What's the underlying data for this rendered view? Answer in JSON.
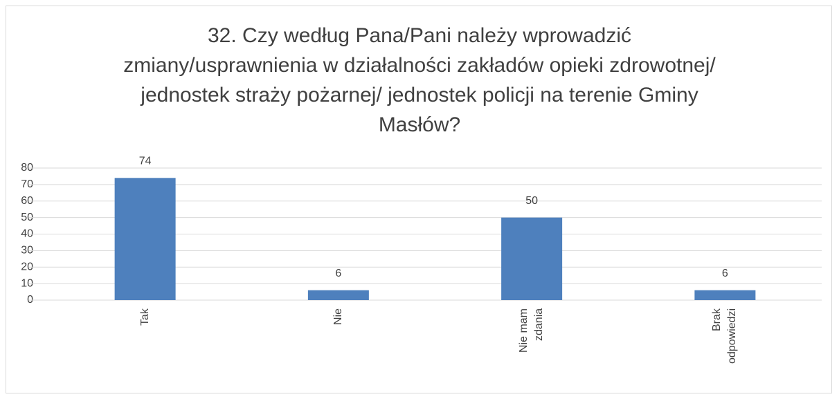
{
  "chart_data": {
    "type": "bar",
    "title": "32. Czy według Pana/Pani należy wprowadzić zmiany/usprawnienia w działalności zakładów opieki zdrowotnej/ jednostek straży pożarnej/ jednostek policji na terenie Gminy Masłów?",
    "categories": [
      "Tak",
      "Nie",
      "Nie mam zdania",
      "Brak odpowiedzi"
    ],
    "values": [
      74,
      6,
      50,
      6
    ],
    "color": "#4e80bd",
    "ylim": [
      0,
      80
    ],
    "yticks": [
      0,
      10,
      20,
      30,
      40,
      50,
      60,
      70,
      80
    ],
    "grid": true
  }
}
